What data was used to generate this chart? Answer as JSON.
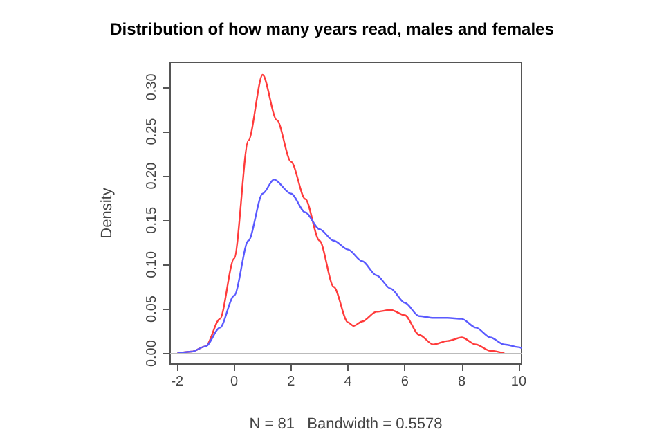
{
  "chart_data": {
    "type": "line",
    "title": "Distribution of how many years read, males and females",
    "xlabel": "N = 81   Bandwidth = 0.5578",
    "ylabel": "Density",
    "xlim": [
      -2.25,
      10.1
    ],
    "ylim": [
      -0.012,
      0.328
    ],
    "xticks": [
      -2,
      0,
      2,
      4,
      6,
      8,
      10
    ],
    "yticks": [
      {
        "value": 0,
        "label": "0.00"
      },
      {
        "value": 0.05,
        "label": "0.05"
      },
      {
        "value": 0.1,
        "label": "0.10"
      },
      {
        "value": 0.15,
        "label": "0.15"
      },
      {
        "value": 0.2,
        "label": "0.20"
      },
      {
        "value": 0.25,
        "label": "0.25"
      },
      {
        "value": 0.3,
        "label": "0.30"
      }
    ],
    "grid": false,
    "marker": "none",
    "line_style": "solid",
    "ref_lines": [
      {
        "axis": "y",
        "value": 0,
        "color": "#bbbbbb"
      }
    ],
    "series": [
      {
        "color": "#ff3b3b",
        "x": [
          -2,
          -1.5,
          -1,
          -0.5,
          0,
          0.5,
          1,
          1.5,
          2,
          2.5,
          3,
          3.5,
          4,
          4.2,
          4.5,
          5,
          5.5,
          6,
          6.5,
          7,
          7.5,
          8,
          8.5,
          9,
          9.5
        ],
        "values": [
          0,
          0.002,
          0.008,
          0.039,
          0.107,
          0.24,
          0.314,
          0.263,
          0.216,
          0.174,
          0.127,
          0.075,
          0.035,
          0.031,
          0.036,
          0.047,
          0.049,
          0.043,
          0.021,
          0.01,
          0.014,
          0.018,
          0.01,
          0.003,
          0
        ]
      },
      {
        "color": "#5a5aff",
        "x": [
          -2,
          -1.5,
          -1,
          -0.5,
          0,
          0.5,
          1,
          1.4,
          2,
          2.5,
          3,
          3.5,
          4,
          4.5,
          5,
          5.5,
          6,
          6.5,
          7,
          7.5,
          8,
          8.5,
          9,
          9.5,
          10,
          10.1
        ],
        "values": [
          0,
          0.002,
          0.008,
          0.029,
          0.065,
          0.127,
          0.18,
          0.196,
          0.18,
          0.159,
          0.14,
          0.127,
          0.117,
          0.104,
          0.088,
          0.073,
          0.057,
          0.042,
          0.04,
          0.04,
          0.039,
          0.029,
          0.018,
          0.01,
          0.007,
          0.006
        ]
      }
    ]
  }
}
